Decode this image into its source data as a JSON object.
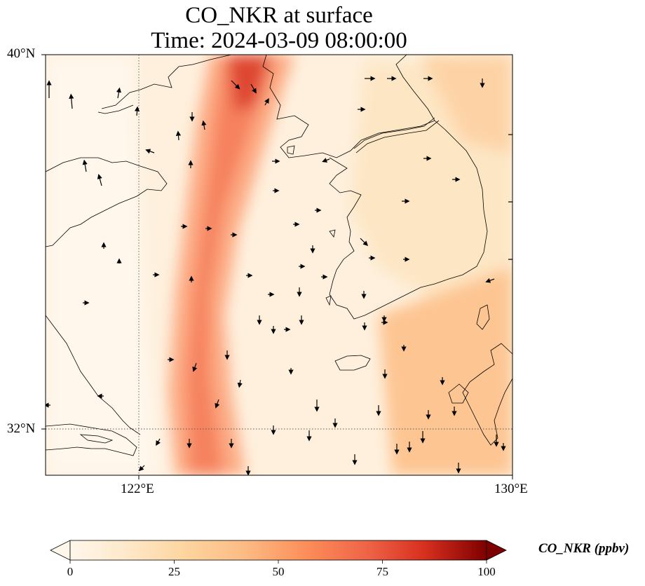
{
  "title": {
    "line1": "CO_NKR at surface",
    "line2": "Time: 2024-03-09 08:00:00"
  },
  "axes": {
    "lat_labels": [
      "40°N",
      "32°N"
    ],
    "lon_labels": [
      "122°E",
      "130°E"
    ],
    "lat_range": [
      31,
      40
    ],
    "lon_range": [
      120,
      130
    ],
    "gridlines": "dotted at 32°N and 122°E"
  },
  "colorbar": {
    "label": "CO_NKR (ppbv)",
    "ticks": [
      "0",
      "25",
      "50",
      "75",
      "100"
    ],
    "range": [
      0,
      100
    ],
    "colormap": "OrRd",
    "extend": "both"
  },
  "colors": {
    "low": "#fff7ec",
    "mid": "#fdd49e",
    "high": "#ef6548",
    "max": "#7f0000"
  },
  "chart_data": {
    "type": "heatmap",
    "variable": "CO_NKR",
    "units": "ppbv",
    "level": "surface",
    "time": "2024-03-09 08:00:00",
    "plume_axis": [
      {
        "lat": 40.0,
        "lon": 124.1,
        "value": 78
      },
      {
        "lat": 39.0,
        "lon": 123.6,
        "value": 64
      },
      {
        "lat": 38.0,
        "lon": 123.3,
        "value": 60
      },
      {
        "lat": 37.0,
        "lon": 123.2,
        "value": 56
      },
      {
        "lat": 36.0,
        "lon": 123.1,
        "value": 52
      },
      {
        "lat": 35.0,
        "lon": 123.1,
        "value": 50
      },
      {
        "lat": 34.0,
        "lon": 123.3,
        "value": 48
      },
      {
        "lat": 33.0,
        "lon": 123.5,
        "value": 46
      },
      {
        "lat": 32.0,
        "lon": 123.6,
        "value": 50
      },
      {
        "lat": 31.0,
        "lon": 123.9,
        "value": 52
      }
    ],
    "background_levels": {
      "west_china_coast": 5,
      "korea_interior": 18,
      "korea_strait_southeast": 30
    }
  }
}
